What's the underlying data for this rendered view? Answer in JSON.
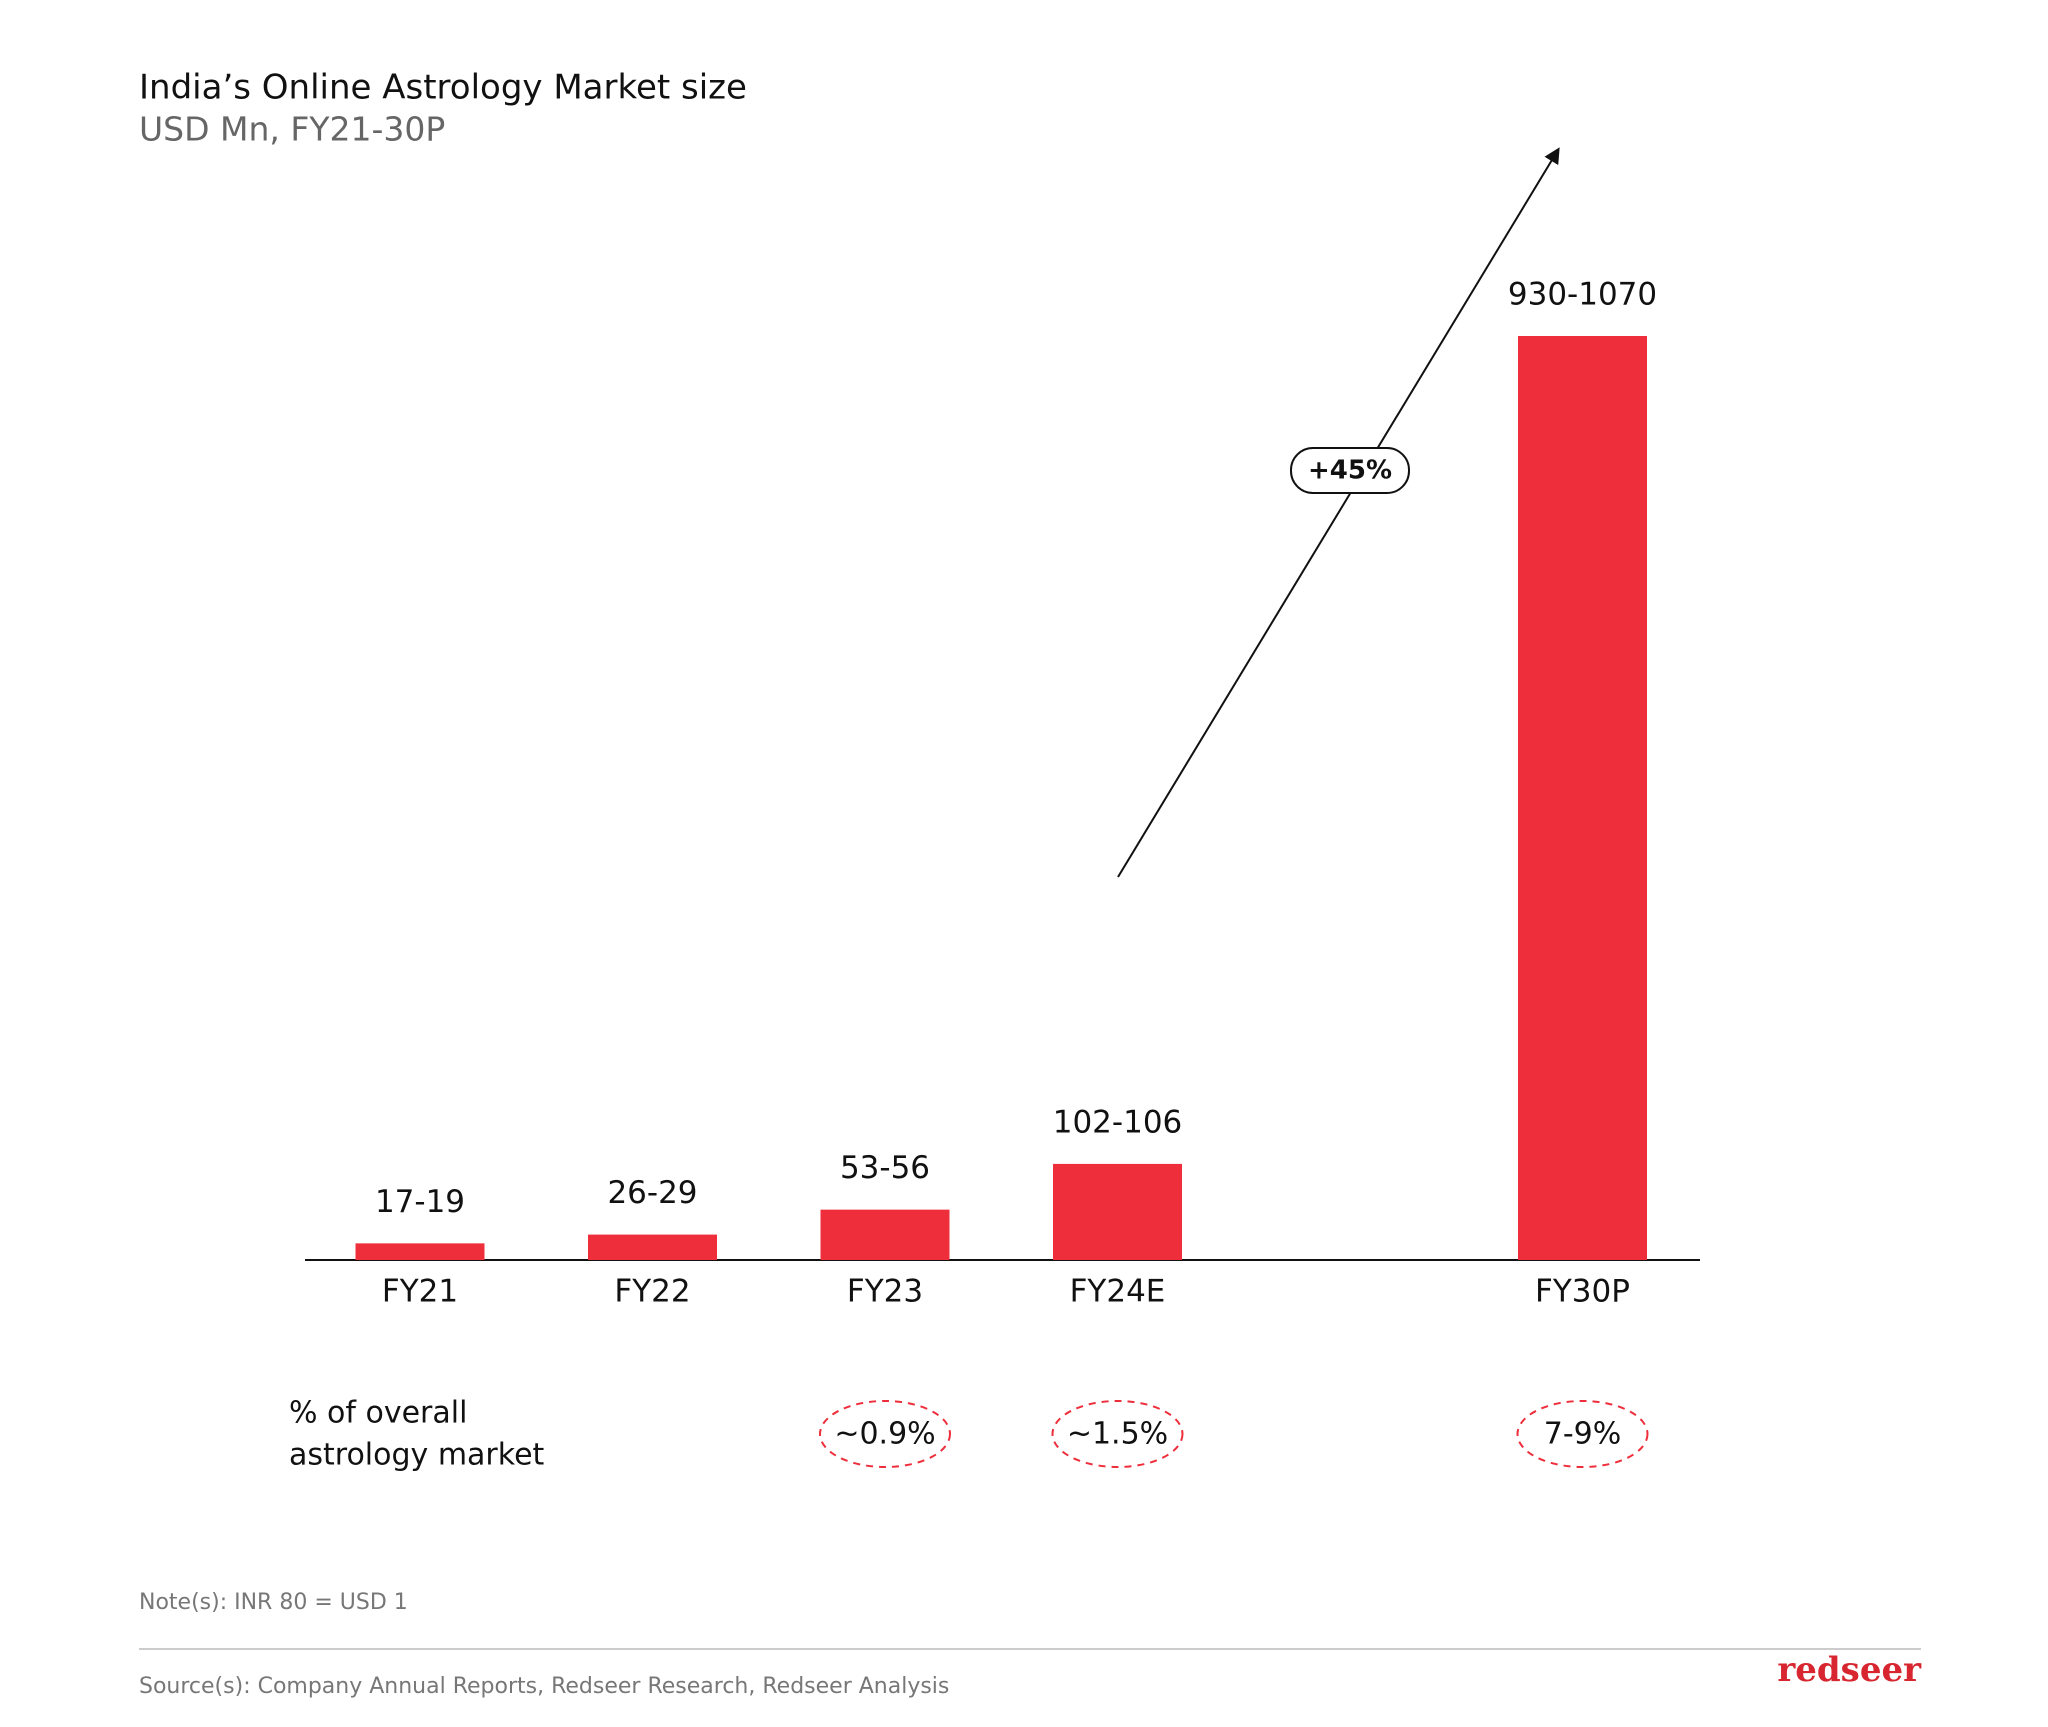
{
  "chart_data": {
    "type": "bar",
    "title": "India’s Online Astrology Market size",
    "subtitle": "USD Mn, FY21-30P",
    "categories": [
      "FY21",
      "FY22",
      "FY23",
      "FY24E",
      "FY30P"
    ],
    "values": [
      18,
      27.5,
      54.5,
      104,
      1000
    ],
    "value_labels": [
      "17-19",
      "26-29",
      "53-56",
      "102-106",
      "930-1070"
    ],
    "color": "#ee2e3b",
    "ylim": [
      0,
      1000
    ],
    "growth_annotation": "+45%",
    "share_row_label": [
      "% of overall",
      "astrology market"
    ],
    "share_labels": [
      null,
      null,
      "~0.9%",
      "~1.5%",
      "7-9%"
    ],
    "note": "Note(s): INR 80 = USD 1",
    "source": "Source(s): Company Annual Reports, Redseer Research, Redseer Analysis",
    "logo": "redseer"
  }
}
